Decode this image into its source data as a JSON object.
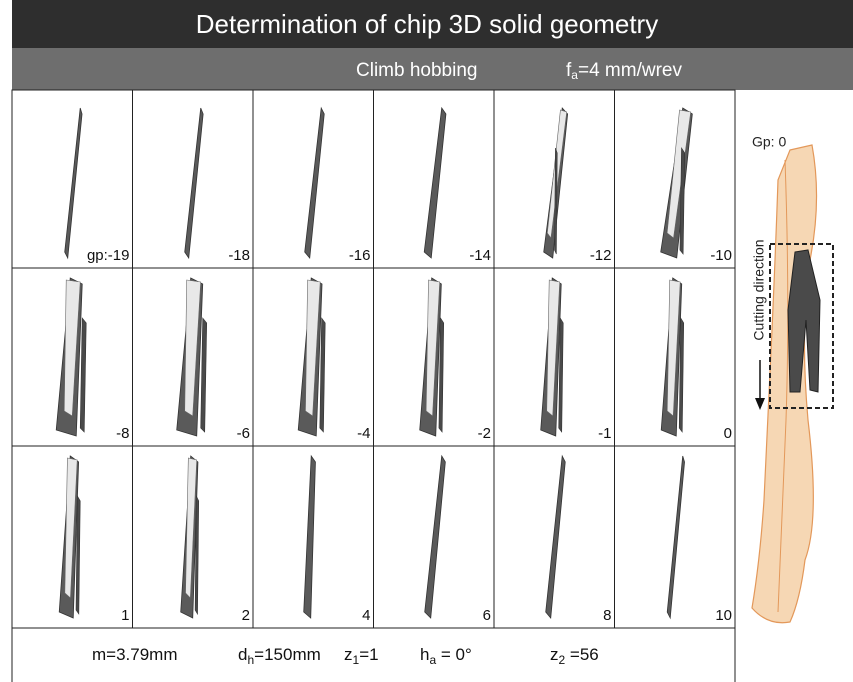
{
  "header": {
    "title": "Determination of chip 3D solid geometry"
  },
  "subheader": {
    "method": "Climb hobbing",
    "feed": {
      "symbol": "f",
      "subscript": "a",
      "text": "=4 mm/wrev"
    }
  },
  "panels": {
    "labels": [
      "gp:-19",
      "-18",
      "-16",
      "-14",
      "-12",
      "-10",
      "-8",
      "-6",
      "-4",
      "-2",
      "-1",
      "0",
      "1",
      "2",
      "4",
      "6",
      "8",
      "10"
    ]
  },
  "side_panel": {
    "label": "Gp: 0",
    "arrow_label": "Cutting direction"
  },
  "parameters": [
    {
      "text": "m=3.79mm"
    },
    {
      "symbol": "d",
      "subscript": "h",
      "text": "=150mm"
    },
    {
      "symbol": "z",
      "subscript": "1",
      "text": "=1"
    },
    {
      "symbol": "h",
      "subscript": "a",
      "text": " = 0°"
    },
    {
      "symbol": "z",
      "subscript": "2",
      "text": " =56"
    }
  ]
}
